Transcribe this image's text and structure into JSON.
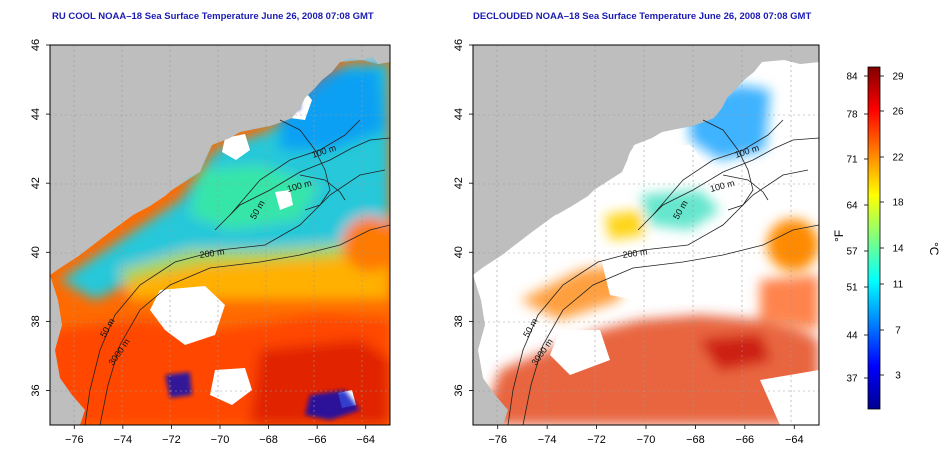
{
  "panels": [
    {
      "title": "RU COOL NOAA–18 Sea Surface Temperature June 26, 2008 07:08 GMT",
      "variant": "cool"
    },
    {
      "title": "DECLOUDED NOAA–18 Sea Surface Temperature June 26, 2008 07:08 GMT",
      "variant": "declouded"
    }
  ],
  "axes": {
    "x_ticks": [
      "−76",
      "−74",
      "−72",
      "−70",
      "−68",
      "−66",
      "−64"
    ],
    "y_ticks": [
      "36",
      "38",
      "40",
      "42",
      "44",
      "46"
    ],
    "x_range": [
      -77,
      -63
    ],
    "y_range": [
      35,
      46
    ]
  },
  "contour_labels": {
    "left": [
      "100 m",
      "100 m",
      "50 m",
      "200 m",
      "50 m",
      "3000 m"
    ],
    "right": [
      "100 m",
      "100 m",
      "50 m",
      "200 m",
      "50 m",
      "3000 m"
    ]
  },
  "colorbar": {
    "f_label": "°F",
    "c_label": "°C",
    "f_ticks": [
      "84",
      "78",
      "71",
      "64",
      "57",
      "51",
      "44",
      "37"
    ],
    "c_ticks": [
      "29",
      "26",
      "22",
      "18",
      "14",
      "11",
      "7",
      "3"
    ],
    "colors": [
      "#00008f",
      "#0000ff",
      "#0080ff",
      "#00ffff",
      "#80ff80",
      "#ffff00",
      "#ff8000",
      "#ff0000",
      "#800000"
    ]
  },
  "colors": {
    "land": "#bebebe",
    "cloud": "#ffffff",
    "title": "#1b1bb4"
  }
}
